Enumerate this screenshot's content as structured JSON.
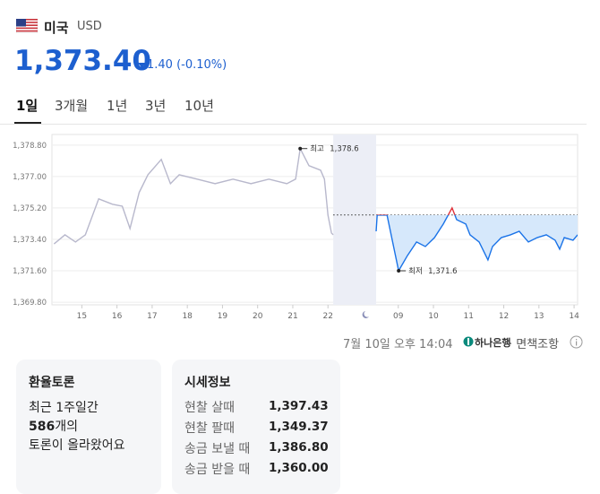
{
  "header": {
    "country": "미국",
    "currency": "USD",
    "rate": "1,373.40",
    "change": "1.40 (-0.10%)"
  },
  "tabs": [
    "1일",
    "3개월",
    "1년",
    "3년",
    "10년"
  ],
  "chart_data": {
    "type": "line",
    "xlim": [
      14.15,
      29.1
    ],
    "xticks": [
      15,
      16,
      17,
      18,
      19,
      20,
      21,
      22,
      {
        "value": 24,
        "label": "09"
      },
      {
        "value": 25,
        "label": "10"
      },
      {
        "value": 26,
        "label": "11"
      },
      {
        "value": 27,
        "label": "12"
      },
      {
        "value": 28,
        "label": "13"
      },
      {
        "value": 29,
        "label": "14"
      }
    ],
    "ylim": [
      1369.65,
      1379.15
    ],
    "yticks": [
      {
        "value": 1369.8,
        "label": "1,369.80"
      },
      {
        "value": 1371.6,
        "label": "1,371.60"
      },
      {
        "value": 1373.4,
        "label": "1,373.40"
      },
      {
        "value": 1375.2,
        "label": "1,375.20"
      },
      {
        "value": 1377,
        "label": "1,377.00"
      },
      {
        "value": 1378.8,
        "label": "1,378.80"
      }
    ],
    "grid": true,
    "reference": 1374.8,
    "closed_market": [
      22.15,
      23.37
    ],
    "series": [
      {
        "color": "#b8b8cc",
        "x": [
          14.21,
          14.52,
          14.82,
          15.1,
          15.48,
          15.87,
          16.15,
          16.37,
          16.63,
          16.88,
          17.26,
          17.52,
          17.77,
          18.28,
          18.79,
          19.3,
          19.81,
          20.32,
          20.83,
          21.08,
          21.21,
          21.46,
          21.79,
          21.9,
          22.0,
          22.1,
          22.15
        ],
        "values": [
          1373.14,
          1373.66,
          1373.25,
          1373.66,
          1375.72,
          1375.41,
          1375.3,
          1374.02,
          1376.08,
          1377.1,
          1377.98,
          1376.59,
          1377.1,
          1376.85,
          1376.59,
          1376.85,
          1376.59,
          1376.85,
          1376.59,
          1376.85,
          1378.6,
          1377.62,
          1377.36,
          1376.85,
          1374.79,
          1373.76,
          1373.66
        ]
      },
      {
        "color": "#1a73e8",
        "above_color": "#e0323a",
        "fill": "#d6e8fb",
        "x": [
          23.37,
          23.4,
          23.68,
          24.01,
          24.26,
          24.52,
          24.77,
          25.03,
          25.28,
          25.53,
          25.66,
          25.92,
          26.04,
          26.3,
          26.55,
          26.68,
          26.93,
          27.19,
          27.44,
          27.7,
          27.95,
          28.21,
          28.46,
          28.59,
          28.72,
          28.97,
          29.1
        ],
        "values": [
          1373.86,
          1374.79,
          1374.79,
          1371.6,
          1372.47,
          1373.25,
          1372.99,
          1373.5,
          1374.28,
          1375.2,
          1374.53,
          1374.28,
          1373.66,
          1373.25,
          1372.22,
          1372.99,
          1373.5,
          1373.66,
          1373.86,
          1373.25,
          1373.5,
          1373.66,
          1373.35,
          1372.84,
          1373.5,
          1373.35,
          1373.66
        ]
      }
    ],
    "annotations": [
      {
        "text": "최고",
        "value_label": "1,378.6",
        "x": 21.21,
        "value": 1378.6
      },
      {
        "text": "최저",
        "value_label": "1,371.6",
        "x": 24.01,
        "value": 1371.6
      }
    ]
  },
  "footer": {
    "timestamp": "7월 10일 오후 14:04",
    "bank": "하나은행",
    "disclaimer": "· 면책조항"
  },
  "discussion": {
    "title": "환율토론",
    "line1": "최근 1주일간",
    "count": 586,
    "count_suffix": "개의",
    "line3": "토론이 올라왔어요"
  },
  "quotes": {
    "title": "시세정보",
    "rows": [
      [
        "현찰 살때",
        "1,397.43"
      ],
      [
        "현찰 팔때",
        "1,349.37"
      ],
      [
        "송금 보낼 때",
        "1,386.80"
      ],
      [
        "송금 받을 때",
        "1,360.00"
      ]
    ]
  }
}
